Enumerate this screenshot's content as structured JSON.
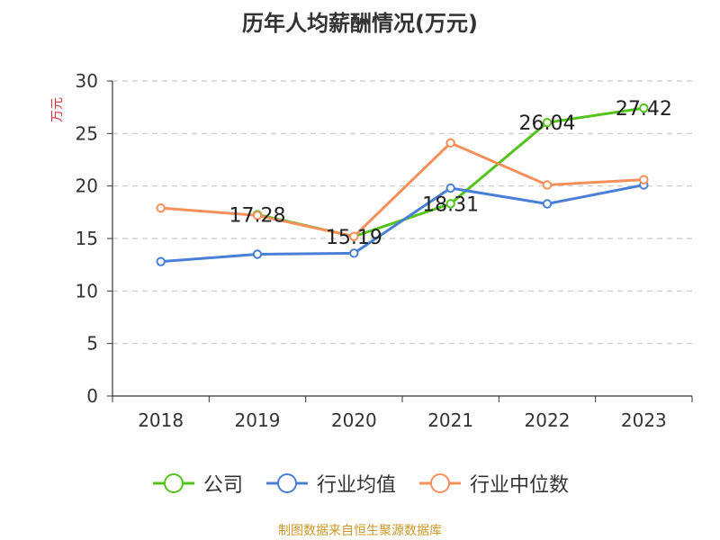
{
  "chart_data": {
    "type": "line",
    "title": "历年人均薪酬情况(万元)",
    "ylabel": "万元",
    "xlabel": "",
    "categories": [
      "2018",
      "2019",
      "2020",
      "2021",
      "2022",
      "2023"
    ],
    "ylim": [
      0,
      30
    ],
    "yticks": [
      0,
      5,
      10,
      15,
      20,
      25,
      30
    ],
    "grid": true,
    "legend_position": "bottom",
    "series": [
      {
        "name": "公司",
        "color": "#52c41a",
        "values": [
          null,
          17.28,
          15.19,
          18.31,
          26.04,
          27.42
        ],
        "labels": [
          "",
          "17.28",
          "15.19",
          "18.31",
          "26.04",
          "27.42"
        ]
      },
      {
        "name": "行业均值",
        "color": "#4a7fd6",
        "values": [
          12.8,
          13.5,
          13.6,
          19.8,
          18.3,
          20.1
        ]
      },
      {
        "name": "行业中位数",
        "color": "#f5905a",
        "values": [
          17.9,
          17.2,
          15.2,
          24.1,
          20.1,
          20.6
        ]
      }
    ]
  },
  "source_note": "制图数据来自恒生聚源数据库"
}
